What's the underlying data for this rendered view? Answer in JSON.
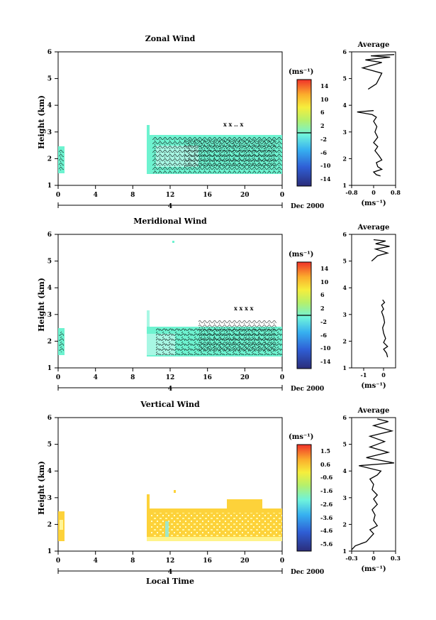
{
  "chart_data": [
    {
      "type": "heatmap",
      "title": "Zonal Wind",
      "xlabel": "",
      "ylabel": "Height (km)",
      "x_ticks": [
        "0",
        "4",
        "8",
        "12",
        "16",
        "20",
        "0"
      ],
      "xlim": [
        0,
        24
      ],
      "y_ticks": [
        "1",
        "2",
        "3",
        "4",
        "5",
        "6"
      ],
      "ylim": [
        1,
        6
      ],
      "date_label": "Dec 2000",
      "date_day": "4",
      "colorbar": {
        "unit": "(ms⁻¹)",
        "ticks": [
          "14",
          "10",
          "6",
          "2",
          "-2",
          "-6",
          "-10",
          "-14"
        ],
        "range": [
          -16,
          16
        ]
      },
      "coverage": [
        {
          "x": [
            0.0,
            0.7
          ],
          "y": [
            1.45,
            2.5
          ],
          "value": -1
        },
        {
          "x": [
            9.5,
            24.0
          ],
          "y": [
            1.45,
            2.6
          ],
          "value": -1
        },
        {
          "x": [
            9.5,
            9.8
          ],
          "y": [
            2.6,
            3.2
          ],
          "value": -1
        }
      ],
      "average_panel": {
        "title": "Average",
        "xlabel": "(ms⁻¹)",
        "x_ticks": [
          "-0.8",
          "0",
          "0.8"
        ],
        "xlim": [
          -0.8,
          0.8
        ],
        "profile": [
          [
            0.25,
            1.35
          ],
          [
            0.1,
            1.4
          ],
          [
            0.0,
            1.5
          ],
          [
            0.3,
            1.6
          ],
          [
            0.15,
            1.7
          ],
          [
            0.1,
            1.85
          ],
          [
            0.3,
            1.95
          ],
          [
            0.2,
            2.1
          ],
          [
            0.05,
            2.3
          ],
          [
            0.15,
            2.45
          ],
          [
            0.0,
            2.6
          ],
          [
            0.15,
            2.8
          ],
          [
            0.05,
            3.0
          ],
          [
            0.12,
            3.2
          ],
          [
            0.0,
            3.4
          ],
          [
            0.1,
            3.55
          ],
          [
            -0.05,
            3.65
          ],
          [
            -0.6,
            3.75
          ],
          [
            0.0,
            3.8
          ]
        ],
        "profile_upper": [
          [
            -0.2,
            4.6
          ],
          [
            0.1,
            4.8
          ],
          [
            0.3,
            5.2
          ],
          [
            -0.4,
            5.4
          ],
          [
            0.3,
            5.6
          ],
          [
            -0.3,
            5.7
          ],
          [
            0.6,
            5.8
          ],
          [
            -0.1,
            5.85
          ],
          [
            0.75,
            5.9
          ]
        ]
      }
    },
    {
      "type": "heatmap",
      "title": "Meridional Wind",
      "xlabel": "",
      "ylabel": "Height (km)",
      "x_ticks": [
        "0",
        "4",
        "8",
        "12",
        "16",
        "20",
        "0"
      ],
      "xlim": [
        0,
        24
      ],
      "y_ticks": [
        "1",
        "2",
        "3",
        "4",
        "5",
        "6"
      ],
      "ylim": [
        1,
        6
      ],
      "date_label": "Dec 2000",
      "date_day": "4",
      "colorbar": {
        "unit": "(ms⁻¹)",
        "ticks": [
          "14",
          "10",
          "6",
          "2",
          "-2",
          "-6",
          "-10",
          "-14"
        ],
        "range": [
          -16,
          16
        ]
      },
      "coverage": [
        {
          "x": [
            0.0,
            0.7
          ],
          "y": [
            1.45,
            2.5
          ],
          "value": -1
        },
        {
          "x": [
            9.5,
            24.0
          ],
          "y": [
            1.45,
            2.5
          ],
          "value": -1
        },
        {
          "x": [
            9.5,
            9.8
          ],
          "y": [
            2.5,
            3.1
          ],
          "value": -1
        }
      ],
      "average_panel": {
        "title": "Average",
        "xlabel": "(ms⁻¹)",
        "x_ticks": [
          "-1",
          "0"
        ],
        "xlim": [
          -1.6,
          0.6
        ],
        "profile": [
          [
            0.2,
            1.4
          ],
          [
            0.15,
            1.55
          ],
          [
            0.0,
            1.7
          ],
          [
            0.2,
            1.8
          ],
          [
            0.0,
            1.95
          ],
          [
            0.1,
            2.1
          ],
          [
            0.0,
            2.3
          ],
          [
            -0.05,
            2.5
          ],
          [
            0.05,
            2.7
          ],
          [
            0.0,
            2.9
          ],
          [
            -0.1,
            3.1
          ],
          [
            0.0,
            3.2
          ],
          [
            -0.1,
            3.35
          ],
          [
            0.05,
            3.45
          ],
          [
            -0.05,
            3.55
          ]
        ],
        "profile_upper": [
          [
            -0.6,
            5.0
          ],
          [
            -0.3,
            5.2
          ],
          [
            0.2,
            5.3
          ],
          [
            -0.4,
            5.45
          ],
          [
            0.3,
            5.55
          ],
          [
            -0.4,
            5.65
          ],
          [
            0.1,
            5.75
          ],
          [
            -0.5,
            5.8
          ]
        ]
      }
    },
    {
      "type": "heatmap",
      "title": "Vertical Wind",
      "xlabel": "Local Time",
      "ylabel": "Height (km)",
      "x_ticks": [
        "0",
        "4",
        "8",
        "12",
        "16",
        "20",
        "0"
      ],
      "xlim": [
        0,
        24
      ],
      "y_ticks": [
        "1",
        "2",
        "3",
        "4",
        "5",
        "6"
      ],
      "ylim": [
        1,
        6
      ],
      "date_label": "Dec 2000",
      "date_day": "4",
      "colorbar": {
        "unit": "(ms⁻¹)",
        "ticks": [
          "1.5",
          "0.6",
          "-0.6",
          "-1.6",
          "-2.6",
          "-3.6",
          "-4.6",
          "-5.6"
        ],
        "range": [
          -6.2,
          2.0
        ]
      },
      "coverage": [
        {
          "x": [
            0.0,
            0.7
          ],
          "y": [
            1.45,
            2.5
          ],
          "value": 0.3
        },
        {
          "x": [
            9.5,
            24.0
          ],
          "y": [
            1.45,
            2.6
          ],
          "value": 0.3
        },
        {
          "x": [
            9.5,
            9.8
          ],
          "y": [
            2.6,
            3.2
          ],
          "value": 0.3
        }
      ],
      "average_panel": {
        "title": "Average",
        "xlabel": "(ms⁻¹)",
        "x_ticks": [
          "-0.3",
          "0",
          "0.3"
        ],
        "xlim": [
          -0.3,
          0.3
        ],
        "profile": [
          [
            -0.3,
            1.05
          ],
          [
            -0.25,
            1.2
          ],
          [
            -0.1,
            1.35
          ],
          [
            -0.05,
            1.5
          ],
          [
            0.0,
            1.65
          ],
          [
            -0.05,
            1.8
          ],
          [
            0.05,
            1.95
          ],
          [
            0.0,
            2.15
          ],
          [
            0.02,
            2.35
          ],
          [
            -0.02,
            2.55
          ],
          [
            0.05,
            2.75
          ],
          [
            0.0,
            2.95
          ],
          [
            0.05,
            3.1
          ],
          [
            -0.02,
            3.3
          ],
          [
            0.0,
            3.5
          ],
          [
            -0.05,
            3.7
          ],
          [
            0.05,
            3.85
          ],
          [
            0.1,
            4.0
          ],
          [
            -0.2,
            4.2
          ],
          [
            0.28,
            4.3
          ],
          [
            -0.1,
            4.5
          ],
          [
            0.2,
            4.7
          ],
          [
            -0.05,
            4.9
          ],
          [
            0.15,
            5.1
          ],
          [
            -0.05,
            5.3
          ],
          [
            0.25,
            5.5
          ],
          [
            0.0,
            5.7
          ],
          [
            0.2,
            5.85
          ],
          [
            0.05,
            5.95
          ]
        ]
      }
    }
  ]
}
